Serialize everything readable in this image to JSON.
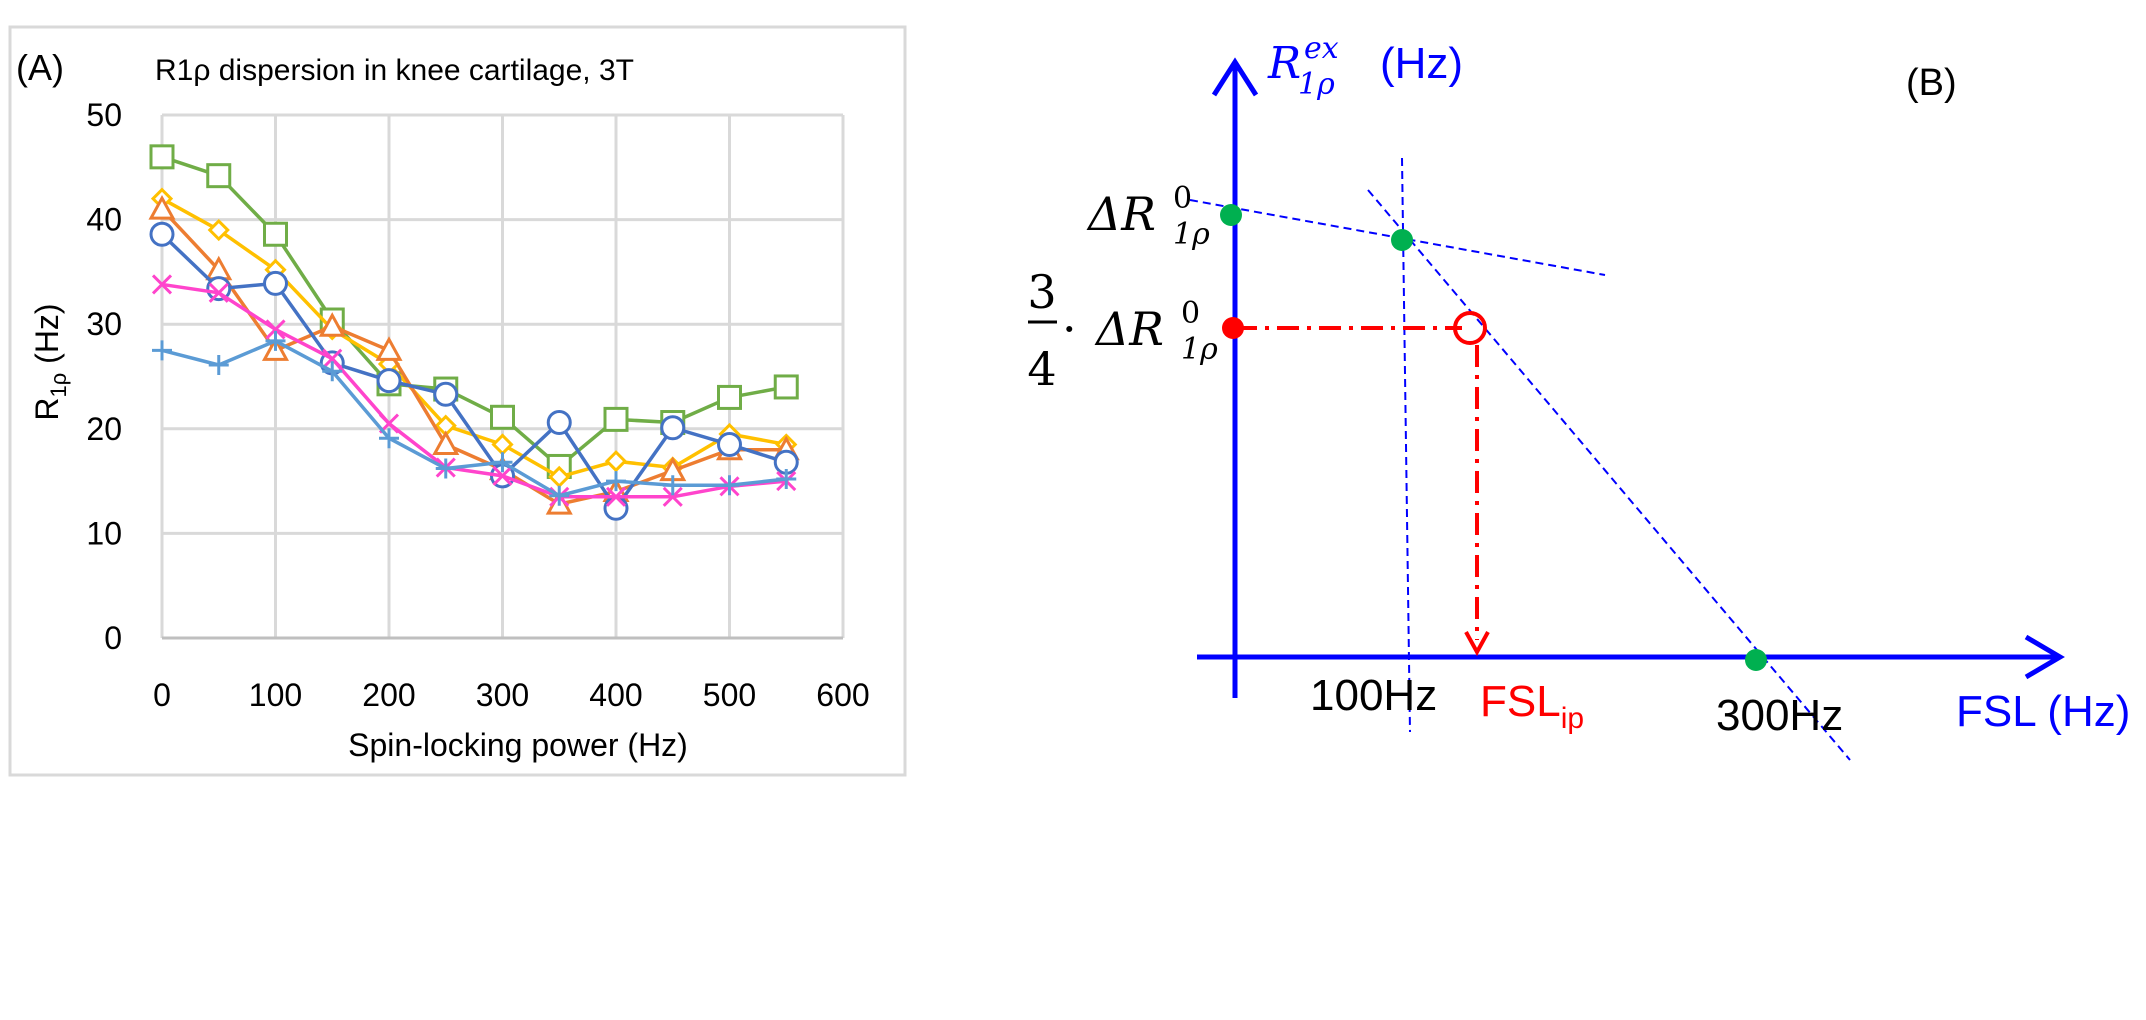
{
  "panel_a": {
    "label": "(A)",
    "chart_data": {
      "type": "line",
      "title": "R1ρ dispersion in knee cartilage, 3T",
      "xlabel": "Spin-locking power (Hz)",
      "ylabel_main": "R",
      "ylabel_sub": "1ρ",
      "ylabel_unit": " (Hz)",
      "xlim": [
        0,
        600
      ],
      "ylim": [
        0,
        50
      ],
      "xticks": [
        "0",
        "100",
        "200",
        "300",
        "400",
        "500",
        "600"
      ],
      "yticks": [
        "0",
        "10",
        "20",
        "30",
        "40",
        "50"
      ],
      "grid": true,
      "x": [
        0,
        50,
        100,
        150,
        200,
        250,
        300,
        350,
        400,
        450,
        500,
        550
      ],
      "series": [
        {
          "color": "#70ad47",
          "marker": "square",
          "values": [
            46,
            44.2,
            38.6,
            30.4,
            24.3,
            23.8,
            21.1,
            16.4,
            20.9,
            20.6,
            23,
            24
          ]
        },
        {
          "color": "#ffc000",
          "marker": "diamond",
          "values": [
            42,
            39,
            35.2,
            29.5,
            26.2,
            20.3,
            18.5,
            15.4,
            16.9,
            16.3,
            19.5,
            18.5
          ]
        },
        {
          "color": "#ed7d31",
          "marker": "triangle",
          "values": [
            41,
            35.2,
            27.5,
            29.8,
            27.5,
            18.5,
            16.1,
            12.8,
            14,
            16,
            18,
            18
          ]
        },
        {
          "color": "#4472c4",
          "marker": "circle",
          "values": [
            38.6,
            33.4,
            33.9,
            26.3,
            24.6,
            23.3,
            15.5,
            20.6,
            12.4,
            20.1,
            18.5,
            16.8
          ]
        },
        {
          "color": "#ff44cc",
          "marker": "x",
          "values": [
            33.8,
            33,
            29.5,
            26.7,
            20.5,
            16.3,
            15.5,
            13.5,
            13.5,
            13.5,
            14.5,
            15
          ]
        },
        {
          "color": "#5b9bd5",
          "marker": "plus",
          "values": [
            27.5,
            26.1,
            28.4,
            25.5,
            19.1,
            16.2,
            16.8,
            13.6,
            15,
            14.6,
            14.6,
            15.2
          ]
        }
      ]
    }
  },
  "panel_b": {
    "label": "(B)",
    "y_axis_unit": "(Hz)",
    "x_axis_label": "FSL (Hz)",
    "tick_100": "100Hz",
    "tick_300": "300Hz",
    "fsl_ip_main": "FSL",
    "fsl_ip_sub": "ip",
    "frac_num": "3",
    "frac_den": "4",
    "dot_op": "·",
    "delta_r": "ΔR",
    "r_sub": "1ρ",
    "r_sup": "0",
    "rex_r": "R",
    "rex_sup": "ex",
    "colors": {
      "axis": "#0000ff",
      "guide": "#0000ff",
      "highlight": "#ff0000",
      "point": "#00b050"
    }
  }
}
